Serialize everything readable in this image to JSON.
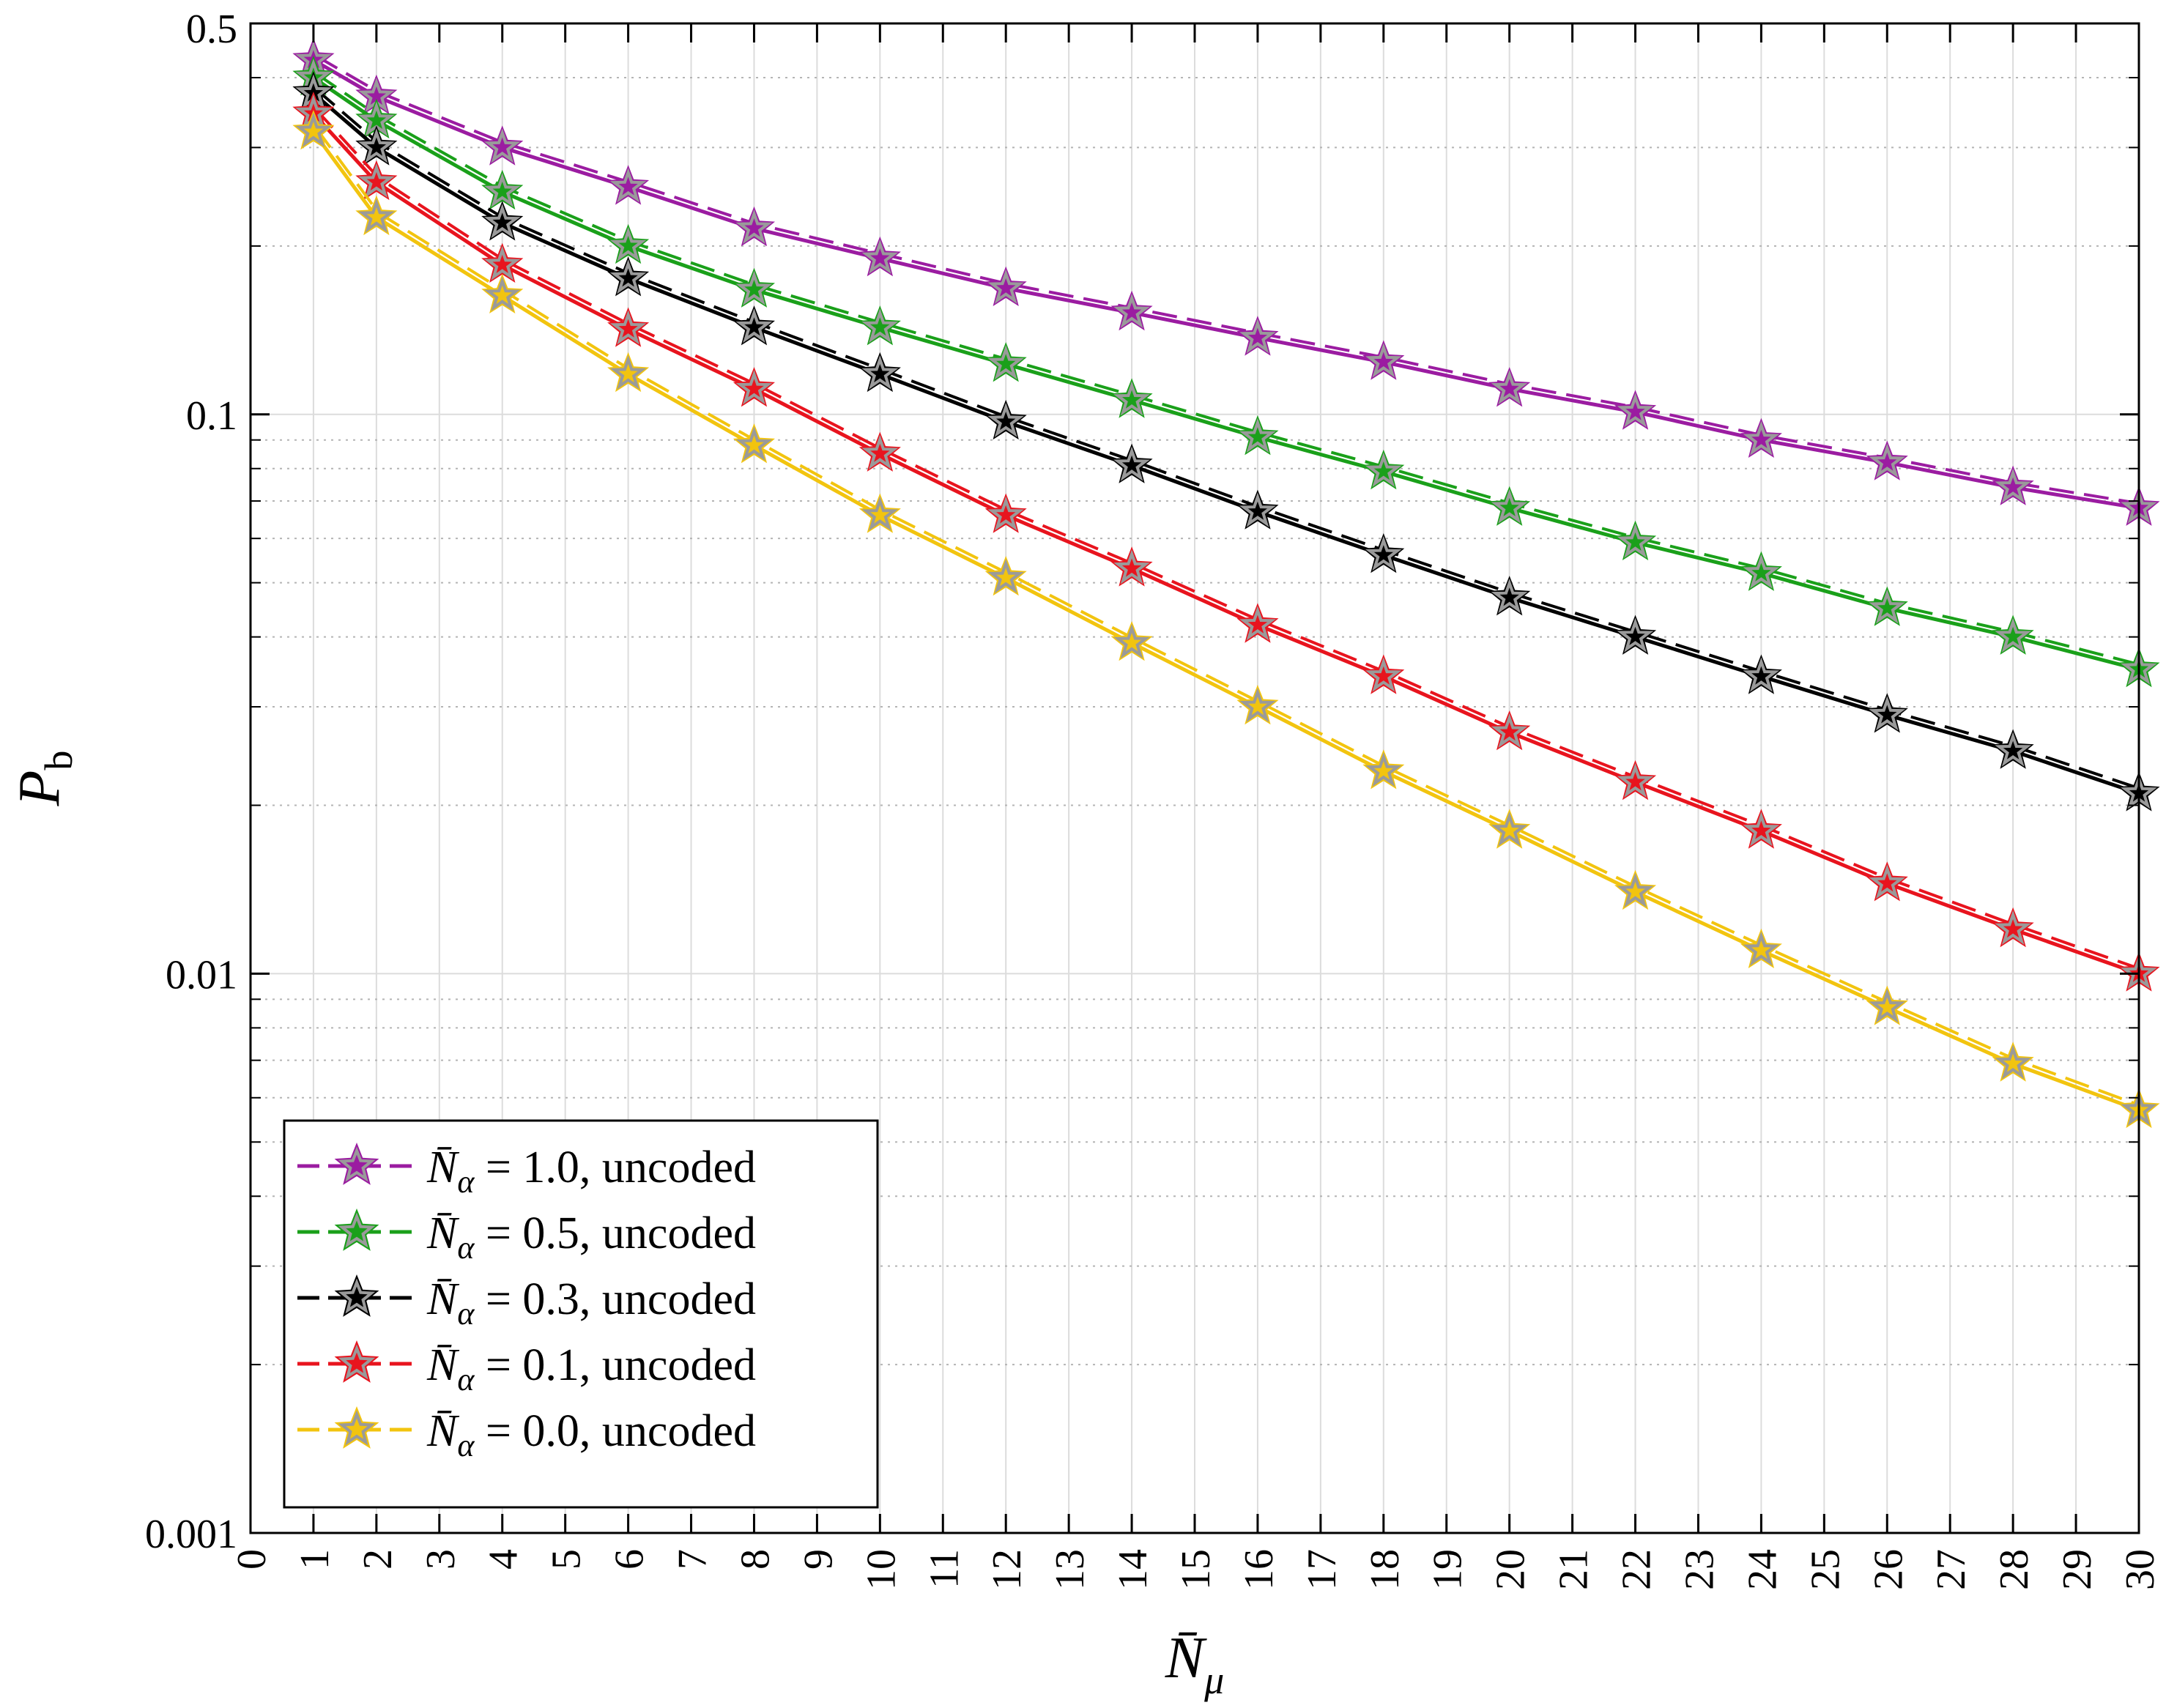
{
  "chart_data": {
    "type": "line",
    "title": "",
    "xlabel": "N̄",
    "xlabel_sub": "μ",
    "ylabel": "P",
    "ylabel_sub": "b",
    "xlim": [
      0,
      30
    ],
    "ylim": [
      0.001,
      0.5
    ],
    "yscale": "log",
    "grid": true,
    "legend_position": "bottom-left",
    "x_ticks": [
      0,
      1,
      2,
      3,
      4,
      5,
      6,
      7,
      8,
      9,
      10,
      11,
      12,
      13,
      14,
      15,
      16,
      17,
      18,
      19,
      20,
      21,
      22,
      23,
      24,
      25,
      26,
      27,
      28,
      29,
      30
    ],
    "y_tick_values": [
      0.001,
      0.01,
      0.1,
      0.5
    ],
    "y_tick_labels": [
      "0.001",
      "0.01",
      "0.1",
      "0.5"
    ],
    "x": [
      1,
      2,
      4,
      6,
      8,
      10,
      12,
      14,
      16,
      18,
      20,
      22,
      24,
      26,
      28,
      30
    ],
    "series": [
      {
        "name": "N̄α = 1.0, uncoded",
        "legend_lhs": "N̄",
        "legend_sub": "α",
        "legend_rhs": " = 1.0, uncoded",
        "color": "#9b1ca1",
        "values": [
          0.43,
          0.37,
          0.3,
          0.255,
          0.215,
          0.19,
          0.168,
          0.152,
          0.137,
          0.124,
          0.111,
          0.101,
          0.09,
          0.082,
          0.074,
          0.068
        ]
      },
      {
        "name": "N̄α = 0.5, uncoded",
        "legend_lhs": "N̄",
        "legend_sub": "α",
        "legend_rhs": " = 0.5, uncoded",
        "color": "#1aa01a",
        "values": [
          0.4,
          0.335,
          0.25,
          0.2,
          0.167,
          0.143,
          0.123,
          0.106,
          0.091,
          0.079,
          0.068,
          0.059,
          0.052,
          0.045,
          0.04,
          0.035
        ]
      },
      {
        "name": "N̄α = 0.3, uncoded",
        "legend_lhs": "N̄",
        "legend_sub": "α",
        "legend_rhs": " = 0.3, uncoded",
        "color": "#000000",
        "values": [
          0.375,
          0.3,
          0.22,
          0.175,
          0.143,
          0.118,
          0.097,
          0.081,
          0.067,
          0.056,
          0.047,
          0.04,
          0.034,
          0.029,
          0.025,
          0.021
        ]
      },
      {
        "name": "N̄α = 0.1, uncoded",
        "legend_lhs": "N̄",
        "legend_sub": "α",
        "legend_rhs": " = 0.1, uncoded",
        "color": "#e8141e",
        "values": [
          0.345,
          0.26,
          0.185,
          0.142,
          0.111,
          0.085,
          0.066,
          0.053,
          0.042,
          0.034,
          0.027,
          0.022,
          0.018,
          0.0145,
          0.012,
          0.01
        ]
      },
      {
        "name": "N̄α = 0.0, uncoded",
        "legend_lhs": "N̄",
        "legend_sub": "α",
        "legend_rhs": " = 0.0, uncoded",
        "color": "#f2c40f",
        "values": [
          0.32,
          0.225,
          0.163,
          0.118,
          0.088,
          0.066,
          0.051,
          0.039,
          0.03,
          0.023,
          0.018,
          0.014,
          0.011,
          0.0087,
          0.0069,
          0.0057
        ]
      }
    ]
  }
}
